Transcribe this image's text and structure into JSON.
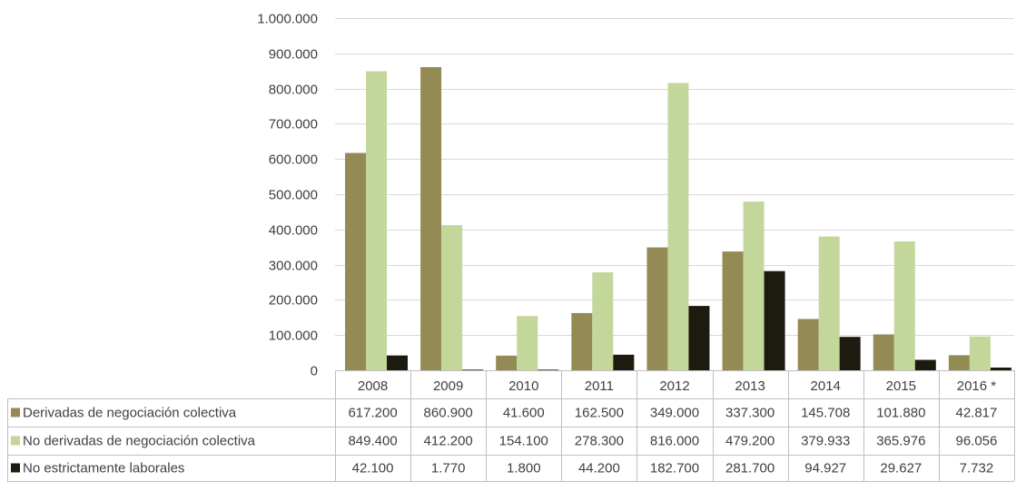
{
  "chart_data": {
    "type": "bar",
    "title": "",
    "xlabel": "",
    "ylabel": "",
    "ylim": [
      0,
      1000000
    ],
    "yticks": [
      0,
      100000,
      200000,
      300000,
      400000,
      500000,
      600000,
      700000,
      800000,
      900000,
      1000000
    ],
    "ytick_labels": [
      "0",
      "100.000",
      "200.000",
      "300.000",
      "400.000",
      "500.000",
      "600.000",
      "700.000",
      "800.000",
      "900.000",
      "1.000.000"
    ],
    "grid": true,
    "legend": "data-table-left",
    "categories": [
      "2008",
      "2009",
      "2010",
      "2011",
      "2012",
      "2013",
      "2014",
      "2015",
      "2016 *"
    ],
    "series": [
      {
        "name": "Derivadas de negociación colectiva",
        "color": "#948A54",
        "values": [
          617200,
          860900,
          41600,
          162500,
          349000,
          337300,
          145708,
          101880,
          42817
        ],
        "labels": [
          "617.200",
          "860.900",
          "41.600",
          "162.500",
          "349.000",
          "337.300",
          "145.708",
          "101.880",
          "42.817"
        ]
      },
      {
        "name": "No derivadas de negociación colectiva",
        "color": "#C4D79B",
        "values": [
          849400,
          412200,
          154100,
          278300,
          816000,
          479200,
          379933,
          365976,
          96056
        ],
        "labels": [
          "849.400",
          "412.200",
          "154.100",
          "278.300",
          "816.000",
          "479.200",
          "379.933",
          "365.976",
          "96.056"
        ]
      },
      {
        "name": "No estrictamente laborales",
        "color": "#1D1B10",
        "values": [
          42100,
          1770,
          1800,
          44200,
          182700,
          281700,
          94927,
          29627,
          7732
        ],
        "labels": [
          "42.100",
          "1.770",
          "1.800",
          "44.200",
          "182.700",
          "281.700",
          "94.927",
          "29.627",
          "7.732"
        ]
      }
    ]
  }
}
